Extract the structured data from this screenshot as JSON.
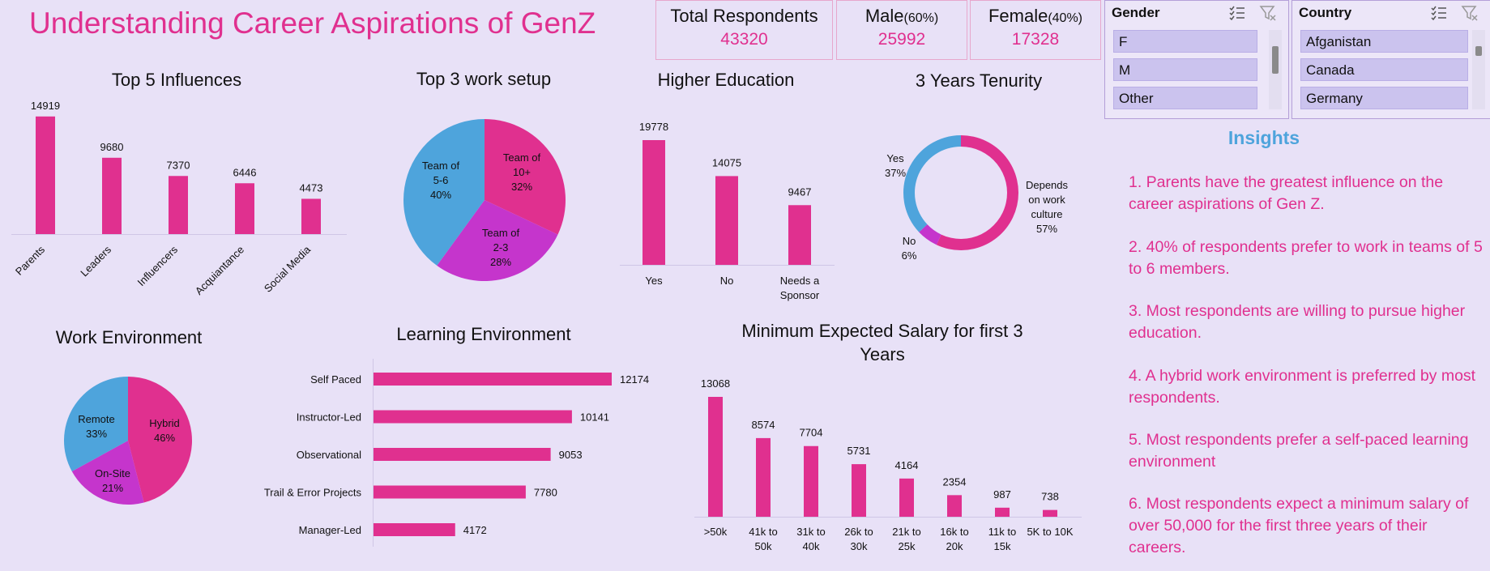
{
  "header": {
    "title": "Understanding Career Aspirations of GenZ",
    "kpis": {
      "total": {
        "label": "Total Respondents",
        "value": "43320"
      },
      "male": {
        "label": "Male",
        "pct": "(60%)",
        "value": "25992"
      },
      "female": {
        "label": "Female",
        "pct": "(40%)",
        "value": "17328"
      }
    }
  },
  "slicers": {
    "gender": {
      "title": "Gender",
      "items": [
        "F",
        "M",
        "Other"
      ]
    },
    "country": {
      "title": "Country",
      "items": [
        "Afganistan",
        "Canada",
        "Germany"
      ]
    }
  },
  "insights": {
    "title": "Insights",
    "items": [
      "1. Parents have the greatest influence on the career aspirations of Gen Z.",
      "2. 40% of respondents prefer to work in teams of 5 to 6 members.",
      "3. Most respondents are willing to pursue higher education.",
      "4. A hybrid work environment is preferred by most respondents.",
      "5. Most respondents prefer a self-paced learning environment",
      "6. Most respondents expect a minimum salary of over 50,000 for the first three years of their careers."
    ]
  },
  "colors": {
    "pink": "#e0308f",
    "blue": "#4ea4dc",
    "purple": "#c535cc"
  },
  "chart_data": [
    {
      "id": "influences",
      "type": "bar",
      "title": "Top 5 Influences",
      "categories": [
        "Parents",
        "Leaders",
        "Influencers",
        "Acquiantance",
        "Social Media"
      ],
      "values": [
        14919,
        9680,
        7370,
        6446,
        4473
      ]
    },
    {
      "id": "work_setup",
      "type": "pie",
      "title": "Top 3 work setup",
      "labels": [
        [
          "Team of",
          "10+",
          "32%"
        ],
        [
          "Team of",
          "2-3",
          "28%"
        ],
        [
          "Team of",
          "5-6",
          "40%"
        ]
      ],
      "values": [
        32,
        28,
        40
      ],
      "colors": [
        "#e0308f",
        "#c535cc",
        "#4ea4dc"
      ]
    },
    {
      "id": "higher_edu",
      "type": "bar",
      "title": "Higher Education",
      "categories": [
        [
          "Yes"
        ],
        [
          "No"
        ],
        [
          "Needs a",
          "Sponsor"
        ]
      ],
      "values": [
        19778,
        14075,
        9467
      ]
    },
    {
      "id": "tenure",
      "type": "pie",
      "title": "3 Years Tenurity",
      "labels": [
        [
          "Depends",
          "on work",
          "culture",
          "57%"
        ],
        [
          "No",
          "6%"
        ],
        [
          "Yes",
          "37%"
        ]
      ],
      "values": [
        57,
        6,
        37
      ],
      "colors": [
        "#e0308f",
        "#c535cc",
        "#4ea4dc"
      ]
    },
    {
      "id": "work_env",
      "type": "pie",
      "title": "Work Environment",
      "labels": [
        [
          "Hybrid",
          "46%"
        ],
        [
          "On-Site",
          "21%"
        ],
        [
          "Remote",
          "33%"
        ]
      ],
      "values": [
        46,
        21,
        33
      ],
      "colors": [
        "#e0308f",
        "#c535cc",
        "#4ea4dc"
      ]
    },
    {
      "id": "learning_env",
      "type": "bar",
      "title": "Learning Environment",
      "categories": [
        "Self Paced",
        "Instructor-Led",
        "Observational",
        "Trail & Error Projects",
        "Manager-Led"
      ],
      "values": [
        12174,
        10141,
        9053,
        7780,
        4172
      ]
    },
    {
      "id": "salary",
      "type": "bar",
      "title": [
        "Minimum Expected Salary for first 3",
        "Years"
      ],
      "categories": [
        [
          ">50k"
        ],
        [
          "41k to",
          "50k"
        ],
        [
          "31k to",
          "40k"
        ],
        [
          "26k to",
          "30k"
        ],
        [
          "21k to",
          "25k"
        ],
        [
          "16k to",
          "20k"
        ],
        [
          "11k to",
          "15k"
        ],
        [
          "5K to 10K"
        ]
      ],
      "values": [
        13068,
        8574,
        7704,
        5731,
        4164,
        2354,
        987,
        738
      ]
    }
  ]
}
